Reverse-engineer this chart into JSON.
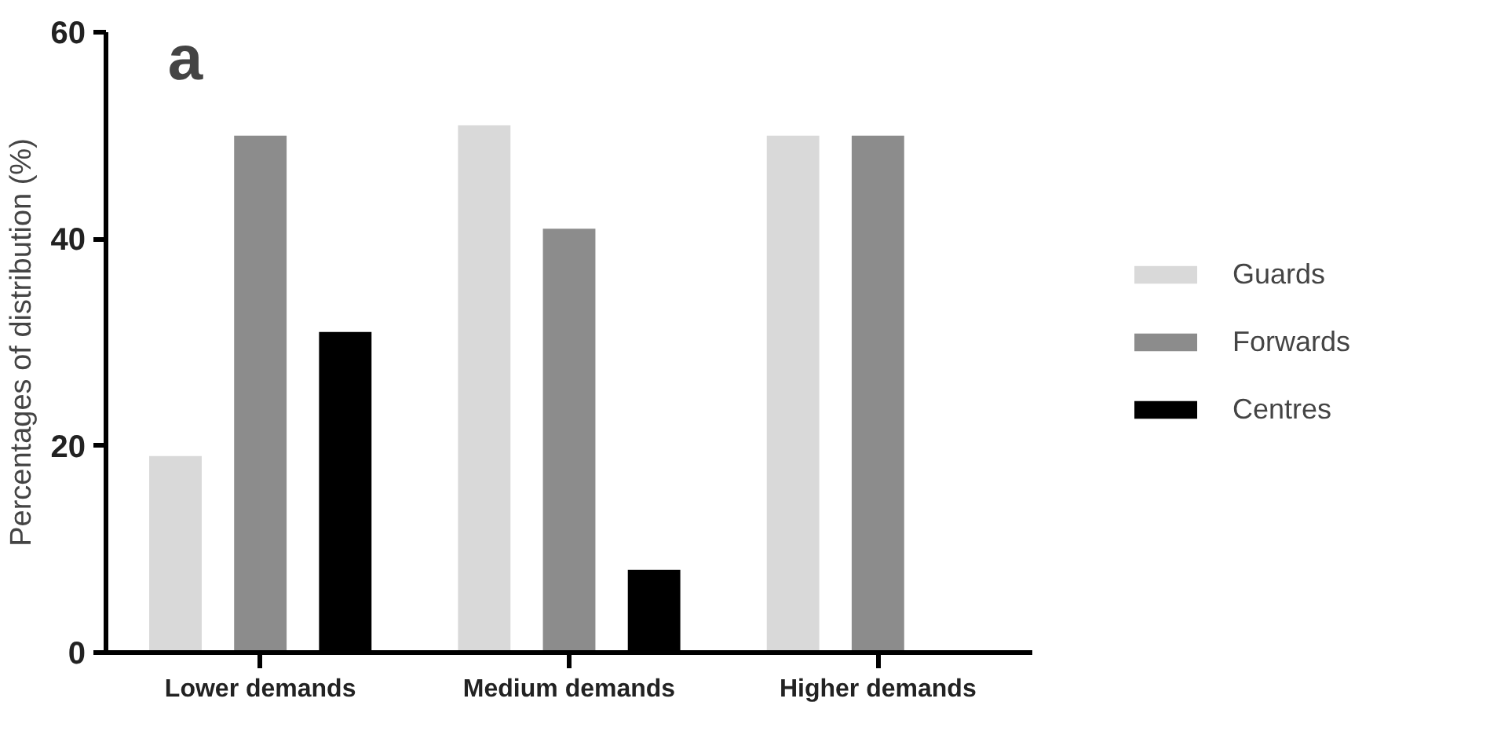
{
  "chart_data": {
    "type": "bar",
    "ylabel": "Percentages of distribution (%)",
    "annotations": [
      "a"
    ],
    "categories": [
      "Lower demands",
      "Medium demands",
      "Higher demands"
    ],
    "series": [
      {
        "name": "Guards",
        "color": "#d9d9d9",
        "values": [
          19,
          51,
          50
        ]
      },
      {
        "name": "Forwards",
        "color": "#8c8c8c",
        "values": [
          50,
          41,
          50
        ]
      },
      {
        "name": "Centres",
        "color": "#000000",
        "values": [
          31,
          8,
          0
        ]
      }
    ],
    "ylim": [
      0,
      60
    ],
    "yticks": [
      0,
      20,
      40,
      60
    ],
    "grid": false,
    "legend": "right"
  }
}
